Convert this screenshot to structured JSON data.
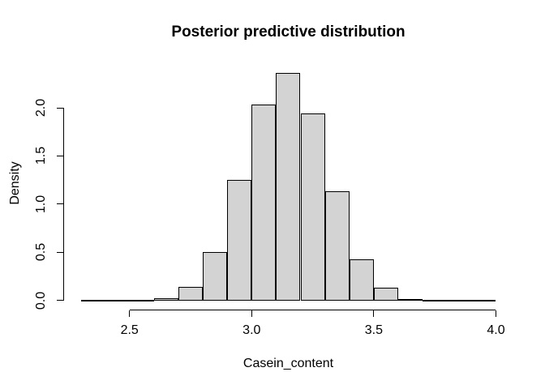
{
  "chart_data": {
    "type": "bar",
    "subtype": "histogram",
    "title": "Posterior predictive distribution",
    "xlabel": "Casein_content",
    "ylabel": "Density",
    "bin_start": 2.3,
    "bin_width": 0.1,
    "densities": [
      0.004,
      0.004,
      0.01,
      0.02,
      0.14,
      0.5,
      1.25,
      2.03,
      2.36,
      1.94,
      1.13,
      0.43,
      0.13,
      0.018,
      0.004,
      0.004,
      0.002
    ],
    "x_ticks": [
      2.5,
      3.0,
      3.5,
      4.0
    ],
    "x_tick_labels": [
      "2.5",
      "3.0",
      "3.5",
      "4.0"
    ],
    "y_ticks": [
      0.0,
      0.5,
      1.0,
      1.5,
      2.0
    ],
    "y_tick_labels": [
      "0.0",
      "0.5",
      "1.0",
      "1.5",
      "2.0"
    ],
    "xlim": [
      2.232,
      4.068
    ],
    "ylim": [
      -0.094,
      2.454
    ],
    "bar_fill": "#d3d3d3",
    "bar_border": "#000000",
    "axis_color": "#000000",
    "text_color": "#000000",
    "background": "#ffffff",
    "grid": false,
    "legend": false
  }
}
